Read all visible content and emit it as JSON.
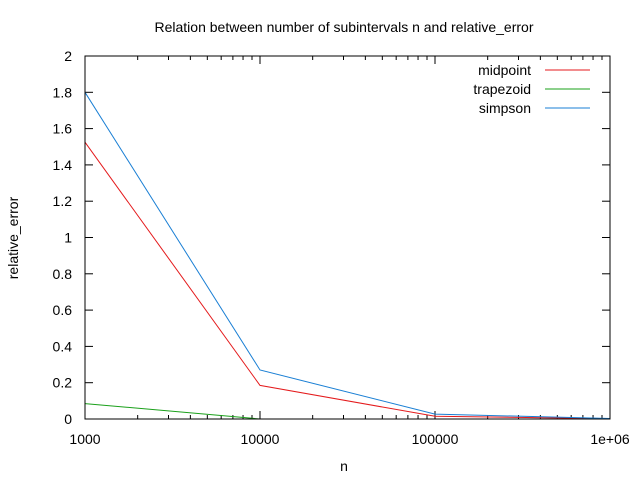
{
  "chart_data": {
    "type": "line",
    "title": "Relation between number of subintervals n and relative_error",
    "xlabel": "n",
    "ylabel": "relative_error",
    "xscale": "log",
    "xlim": [
      1000,
      1000000
    ],
    "ylim": [
      0,
      2
    ],
    "x_ticks": [
      1000,
      10000,
      100000,
      1000000
    ],
    "x_tick_labels": [
      "1000",
      "10000",
      "100000",
      "1e+06"
    ],
    "y_ticks": [
      0,
      0.2,
      0.4,
      0.6,
      0.8,
      1,
      1.2,
      1.4,
      1.6,
      1.8,
      2
    ],
    "y_tick_labels": [
      "0",
      "0.2",
      "0.4",
      "0.6",
      "0.8",
      "1",
      "1.2",
      "1.4",
      "1.6",
      "1.8",
      "2"
    ],
    "grid": false,
    "legend_position": "top-right",
    "x": [
      1000,
      10000,
      100000,
      1000000
    ],
    "series": [
      {
        "name": "midpoint",
        "color": "#e41a1c",
        "values": [
          1.525,
          0.185,
          0.015,
          0.002
        ]
      },
      {
        "name": "trapezoid",
        "color": "#1aa01a",
        "values": [
          0.085,
          0.0,
          null,
          null
        ]
      },
      {
        "name": "simpson",
        "color": "#1a7fd4",
        "values": [
          1.8,
          0.27,
          0.027,
          0.003
        ]
      }
    ]
  }
}
